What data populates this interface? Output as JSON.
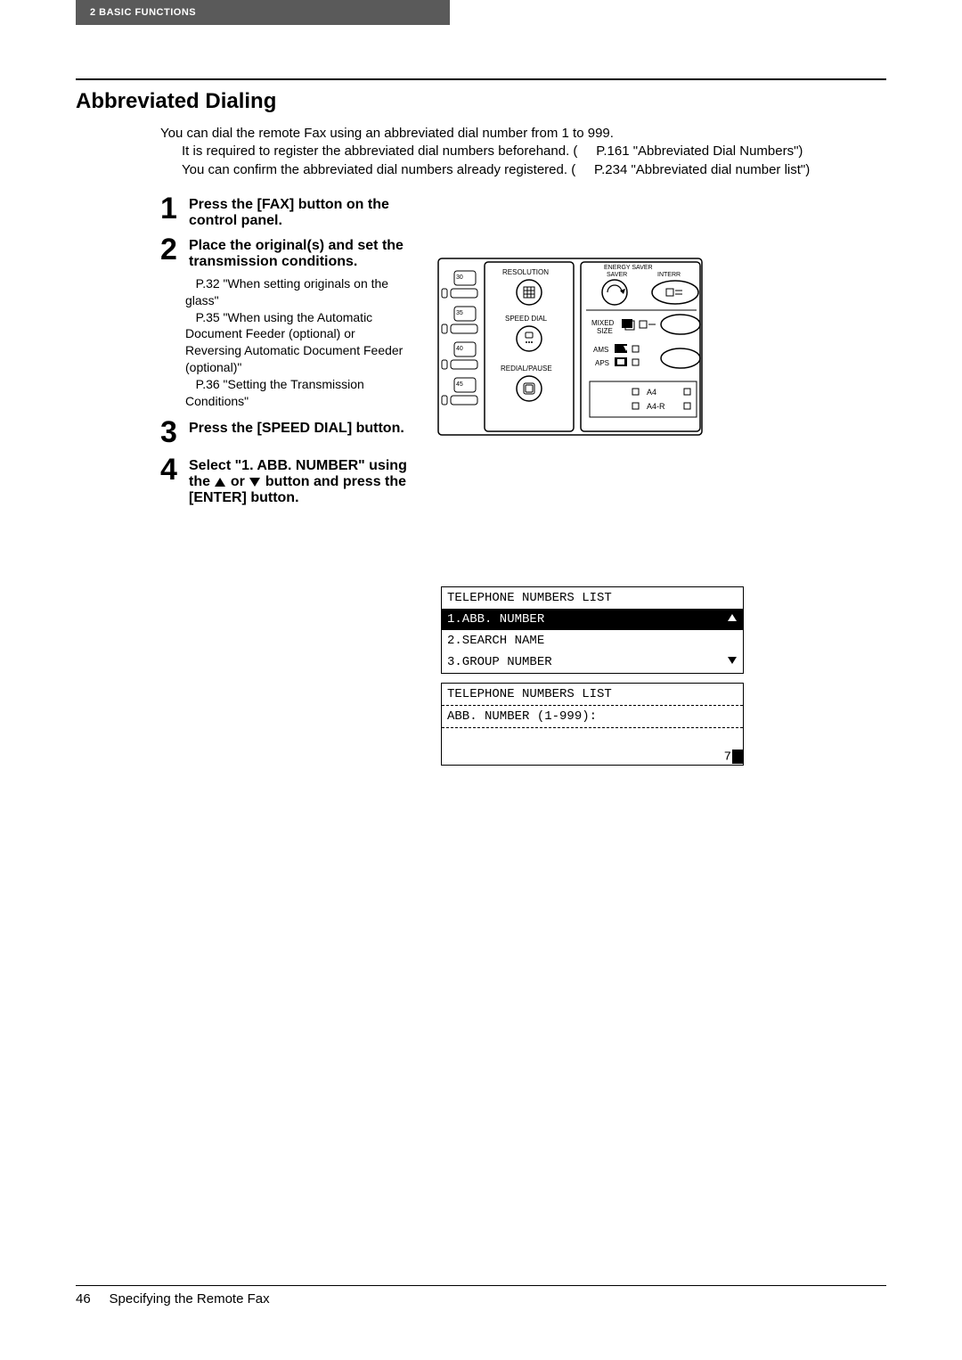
{
  "header": {
    "chapter": "2  BASIC FUNCTIONS"
  },
  "section": {
    "title": "Abbreviated Dialing"
  },
  "intro": {
    "line1": "You can dial the remote Fax using an abbreviated dial number from 1 to 999.",
    "line2a": "It is required to register the abbreviated dial numbers beforehand. (",
    "line2b": "P.161 \"Abbreviated Dial Numbers\")",
    "line3a": "You can confirm the abbreviated dial numbers already registered. (",
    "line3b": "P.234 \"Abbreviated dial number list\")"
  },
  "steps": {
    "s1": {
      "num": "1",
      "text": "Press the [FAX] button on the control panel."
    },
    "s2": {
      "num": "2",
      "text": "Place the original(s) and set the transmission conditions.",
      "sub1": "P.32 \"When setting originals on the glass\"",
      "sub2": "P.35 \"When using the Automatic Document Feeder (optional) or Reversing Automatic Document Feeder (optional)\"",
      "sub3": "P.36 \"Setting the Transmission Conditions\""
    },
    "s3": {
      "num": "3",
      "text": "Press the [SPEED DIAL] button."
    },
    "s4": {
      "num": "4",
      "text_a": "Select \"1. ABB. NUMBER\" using the ",
      "text_b": " or ",
      "text_c": " button and press the [ENTER] button."
    }
  },
  "panel": {
    "resolution": "RESOLUTION",
    "speed_dial": "SPEED DIAL",
    "redial_pause": "REDIAL/PAUSE",
    "energy_saver": "ENERGY SAVER",
    "interr": "INTERR",
    "mixed_size": "MIXED SIZE",
    "ams": "AMS",
    "aps": "APS",
    "a4": "A4",
    "a4r": "A4-R",
    "n30": "30",
    "n35": "35",
    "n40": "40",
    "n45": "45",
    "colors": {
      "stroke": "#000000",
      "bg": "#ffffff"
    }
  },
  "lcd1": {
    "title": "TELEPHONE NUMBERS LIST",
    "row1": "1.ABB. NUMBER",
    "row2": "2.SEARCH NAME",
    "row3": "3.GROUP NUMBER"
  },
  "lcd2": {
    "title": "TELEPHONE NUMBERS LIST",
    "prompt": "ABB. NUMBER (1-999):",
    "page": "7"
  },
  "footer": {
    "page": "46",
    "title": "Specifying the Remote Fax"
  }
}
